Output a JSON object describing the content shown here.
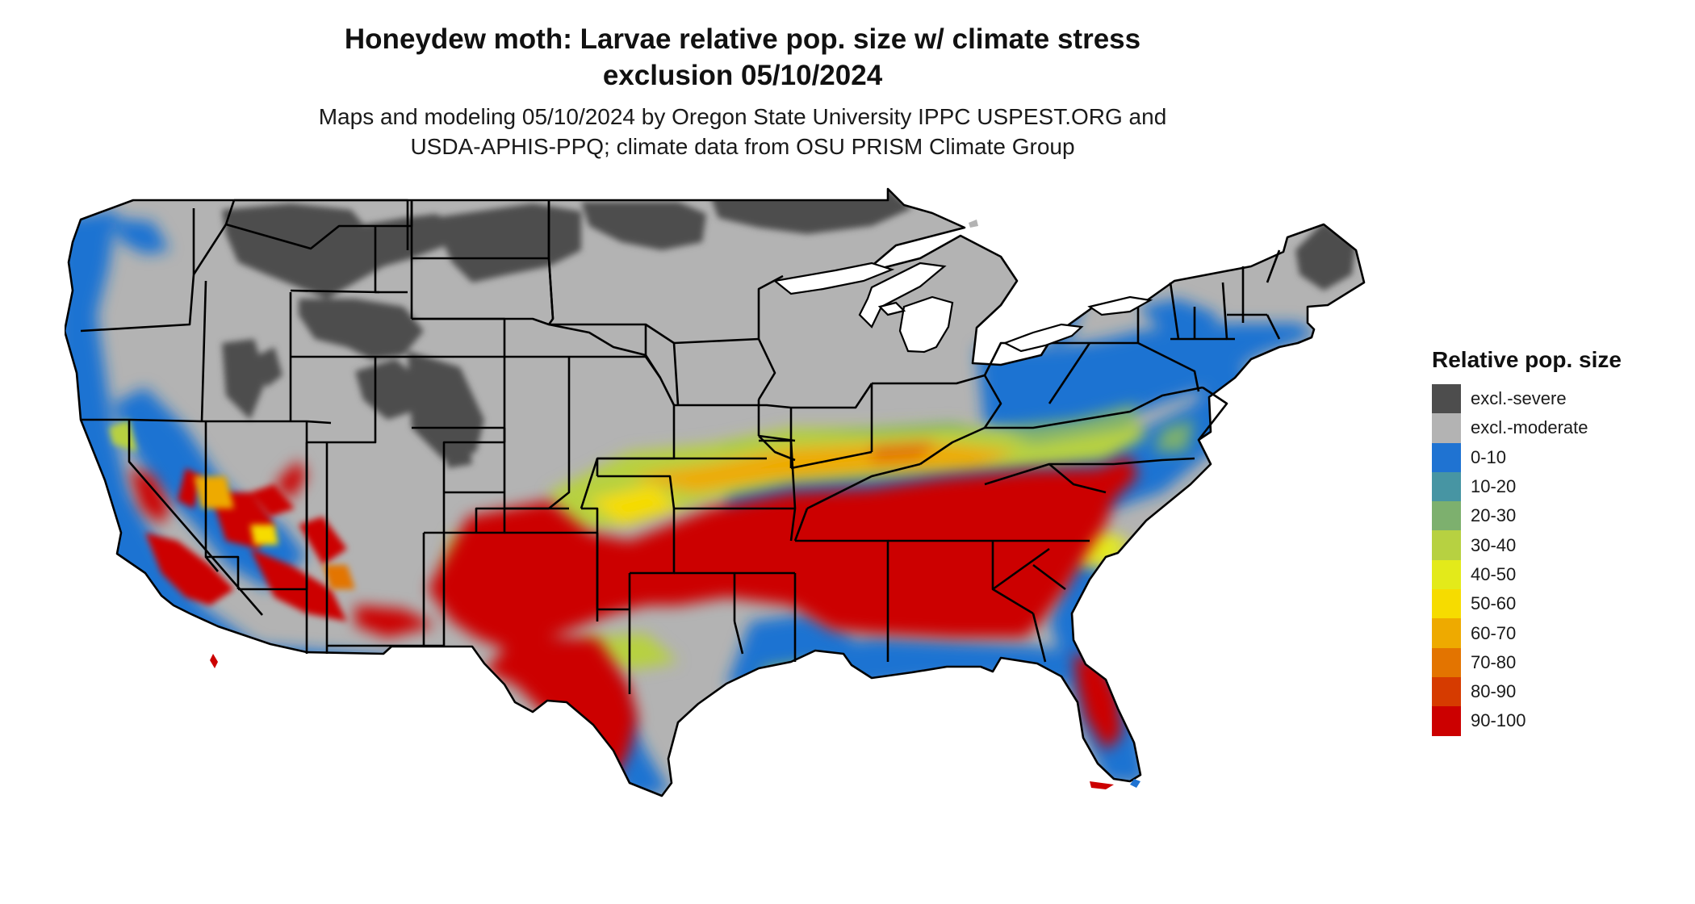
{
  "header": {
    "title_line1": "Honeydew moth: Larvae relative pop. size w/ climate stress",
    "title_line2": "exclusion 05/10/2024",
    "subtitle_line1": "Maps and modeling 05/10/2024 by Oregon State University IPPC USPEST.ORG and",
    "subtitle_line2": "USDA-APHIS-PPQ; climate data from OSU PRISM Climate Group"
  },
  "legend": {
    "title": "Relative pop. size",
    "items": [
      {
        "label": "excl.-severe",
        "color": "#4d4d4d"
      },
      {
        "label": "excl.-moderate",
        "color": "#b3b3b3"
      },
      {
        "label": "0-10",
        "color": "#1f73d2"
      },
      {
        "label": "10-20",
        "color": "#4795a3"
      },
      {
        "label": "20-30",
        "color": "#7db06e"
      },
      {
        "label": "30-40",
        "color": "#b7d141"
      },
      {
        "label": "40-50",
        "color": "#e3ea1a"
      },
      {
        "label": "50-60",
        "color": "#f6dc00"
      },
      {
        "label": "60-70",
        "color": "#eeaa00"
      },
      {
        "label": "70-80",
        "color": "#e37400"
      },
      {
        "label": "80-90",
        "color": "#d63b00"
      },
      {
        "label": "90-100",
        "color": "#cc0000"
      }
    ]
  },
  "map": {
    "region": "contiguous-united-states",
    "border_color": "#000000",
    "water_color": "#ffffff"
  }
}
